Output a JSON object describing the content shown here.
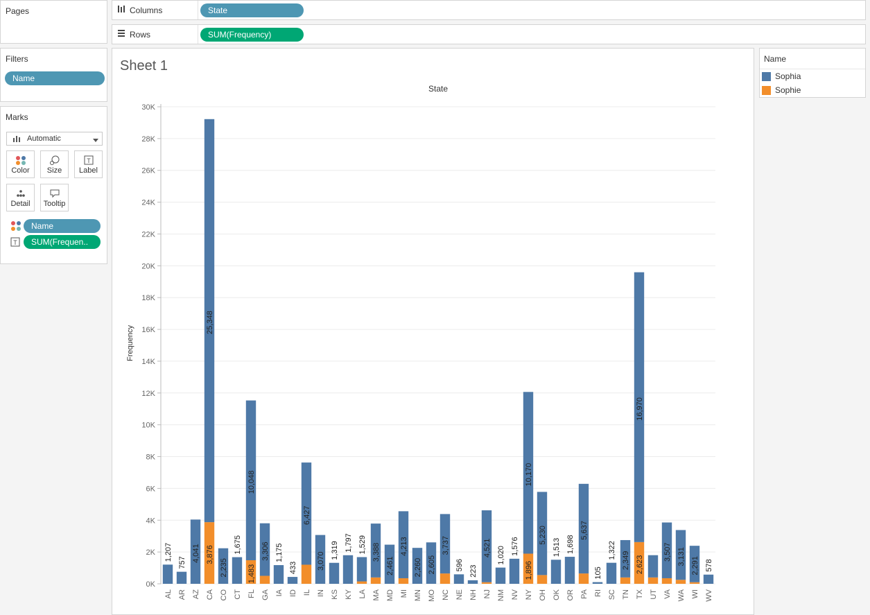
{
  "pages": {
    "title": "Pages"
  },
  "filters": {
    "title": "Filters",
    "pill": "Name"
  },
  "marks": {
    "title": "Marks",
    "dropdown": "Automatic",
    "buttons": {
      "color": "Color",
      "size": "Size",
      "label": "Label",
      "detail": "Detail",
      "tooltip": "Tooltip"
    },
    "pill_name": "Name",
    "pill_freq": "SUM(Frequen.."
  },
  "columns": {
    "label": "Columns",
    "pill": "State"
  },
  "rows": {
    "label": "Rows",
    "pill": "SUM(Frequency)"
  },
  "sheet": {
    "title": "Sheet 1"
  },
  "legend": {
    "title": "Name",
    "items": [
      {
        "label": "Sophia",
        "color": "#4e79a7"
      },
      {
        "label": "Sophie",
        "color": "#f28e2b"
      }
    ]
  },
  "chart_data": {
    "type": "bar",
    "stacked": true,
    "title": "State",
    "xlabel": "",
    "ylabel": "Frequency",
    "ylim": [
      0,
      30000
    ],
    "yticks": [
      0,
      2000,
      4000,
      6000,
      8000,
      10000,
      12000,
      14000,
      16000,
      18000,
      20000,
      22000,
      24000,
      26000,
      28000,
      30000
    ],
    "ytick_labels": [
      "0K",
      "2K",
      "4K",
      "6K",
      "8K",
      "10K",
      "12K",
      "14K",
      "16K",
      "18K",
      "20K",
      "22K",
      "24K",
      "26K",
      "28K",
      "30K"
    ],
    "categories": [
      "AL",
      "AR",
      "AZ",
      "CA",
      "CO",
      "CT",
      "FL",
      "GA",
      "IA",
      "ID",
      "IL",
      "IN",
      "KS",
      "KY",
      "LA",
      "MA",
      "MD",
      "MI",
      "MN",
      "MO",
      "NC",
      "NE",
      "NH",
      "NJ",
      "NM",
      "NV",
      "NY",
      "OH",
      "OK",
      "OR",
      "PA",
      "RI",
      "SC",
      "TN",
      "TX",
      "UT",
      "VA",
      "WA",
      "WI",
      "WV"
    ],
    "series": [
      {
        "name": "Sophia",
        "color": "#4e79a7",
        "values": [
          1207,
          757,
          4041,
          25348,
          2235,
          1675,
          10048,
          3306,
          1175,
          433,
          6427,
          3070,
          1319,
          1797,
          1529,
          3388,
          2461,
          4213,
          2260,
          2605,
          3737,
          596,
          223,
          4521,
          1020,
          1576,
          10170,
          5230,
          1513,
          1698,
          5637,
          105,
          1322,
          2349,
          16970,
          1400,
          3507,
          3131,
          2291,
          578
        ]
      },
      {
        "name": "Sophie",
        "color": "#f28e2b",
        "values": [
          0,
          0,
          0,
          3876,
          0,
          0,
          1483,
          500,
          0,
          0,
          1200,
          0,
          0,
          0,
          150,
          400,
          0,
          350,
          0,
          0,
          650,
          0,
          0,
          100,
          0,
          0,
          1896,
          550,
          0,
          0,
          650,
          0,
          0,
          400,
          2623,
          400,
          350,
          250,
          100,
          0
        ]
      }
    ],
    "labels": {
      "Sophia": [
        "1,207",
        "757",
        "4,041",
        "25,348",
        "2,235",
        "1,675",
        "10,048",
        "3,306",
        "1,175",
        "433",
        "6,427",
        "3,070",
        "1,319",
        "1,797",
        "1,529",
        "3,388",
        "2,461",
        "4,213",
        "2,260",
        "2,605",
        "3,737",
        "596",
        "223",
        "4,521",
        "1,020",
        "1,576",
        "10,170",
        "5,230",
        "1,513",
        "1,698",
        "5,637",
        "105",
        "1,322",
        "2,349",
        "16,970",
        "",
        "3,507",
        "3,131",
        "2,291",
        "578"
      ],
      "Sophie": [
        "",
        "",
        "",
        "3,876",
        "",
        "",
        "1,483",
        "",
        "",
        "",
        "",
        "",
        "",
        "",
        "",
        "",
        "",
        "",
        "",
        "",
        "",
        "",
        "",
        "",
        "",
        "",
        "1,896",
        "",
        "",
        "",
        "",
        "",
        "",
        "",
        "2,623",
        "",
        "",
        "",
        "",
        ""
      ]
    },
    "grid": true,
    "legend_position": "right"
  }
}
